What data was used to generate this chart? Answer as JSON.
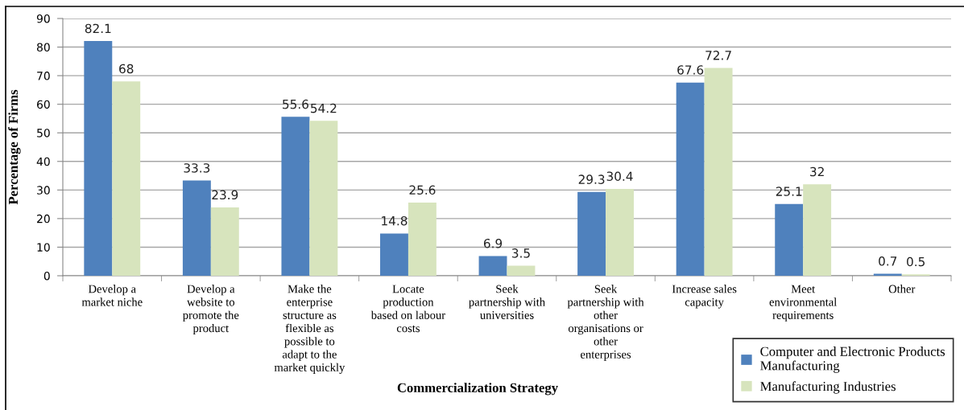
{
  "chart_data": {
    "type": "bar",
    "xlabel": "Commercialization Strategy",
    "ylabel": "Percentage of Firms",
    "categories": [
      "Develop a\nmarket niche",
      "Develop a\nwebsite to\npromote the\nproduct",
      "Make the\nenterprise\nstructure as\nflexible as\npossible to\nadapt to the\nmarket quickly",
      "Locate\nproduction\nbased on labour\ncosts",
      "Seek\npartnership with\nuniversities",
      "Seek\npartnership with\nother\norganisations or\nother\nenterprises",
      "Increase sales\ncapacity",
      "Meet\nenvironmental\nrequirements",
      "Other"
    ],
    "series": [
      {
        "name": "Computer and Electronic Products\nManufacturing",
        "color": "#4f81bd",
        "values": [
          82.1,
          33.3,
          55.6,
          14.8,
          6.9,
          29.3,
          67.6,
          25.1,
          0.7
        ]
      },
      {
        "name": "Manufacturing Industries",
        "color": "#d7e4bd",
        "values": [
          68,
          23.9,
          54.2,
          25.6,
          3.5,
          30.4,
          72.7,
          32,
          0.5
        ]
      }
    ],
    "ylim": [
      0,
      90
    ],
    "yticks": [
      0,
      10,
      20,
      30,
      40,
      50,
      60,
      70,
      80,
      90
    ],
    "grid": "y",
    "legend": "bottom right",
    "data_labels": true
  }
}
